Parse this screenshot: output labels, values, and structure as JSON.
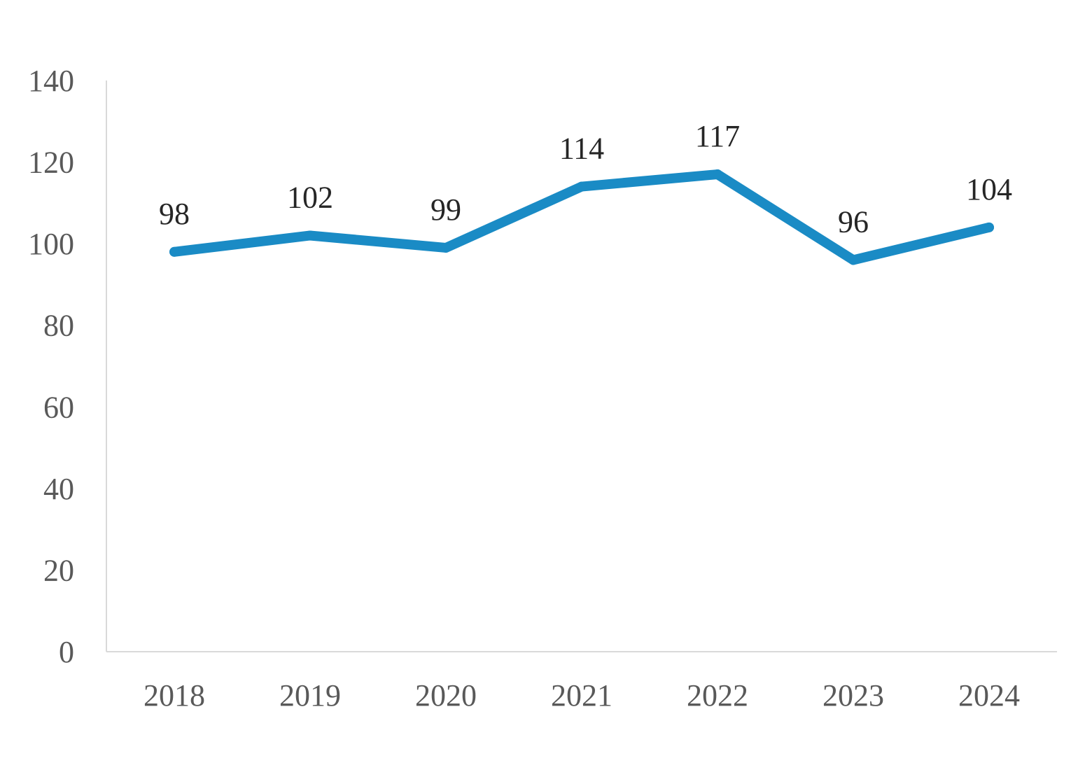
{
  "chart_data": {
    "type": "line",
    "title": "",
    "xlabel": "",
    "ylabel": "",
    "categories": [
      "2018",
      "2019",
      "2020",
      "2021",
      "2022",
      "2023",
      "2024"
    ],
    "series": [
      {
        "values": [
          98,
          102,
          99,
          114,
          117,
          96,
          104
        ],
        "color": "#1a8bc5",
        "data_labels": [
          "98",
          "102",
          "99",
          "114",
          "117",
          "96",
          "104"
        ]
      }
    ],
    "ylim": [
      0,
      140
    ],
    "yticks": [
      "0",
      "20",
      "40",
      "60",
      "80",
      "100",
      "120",
      "140"
    ],
    "grid": false,
    "legend": "none"
  }
}
